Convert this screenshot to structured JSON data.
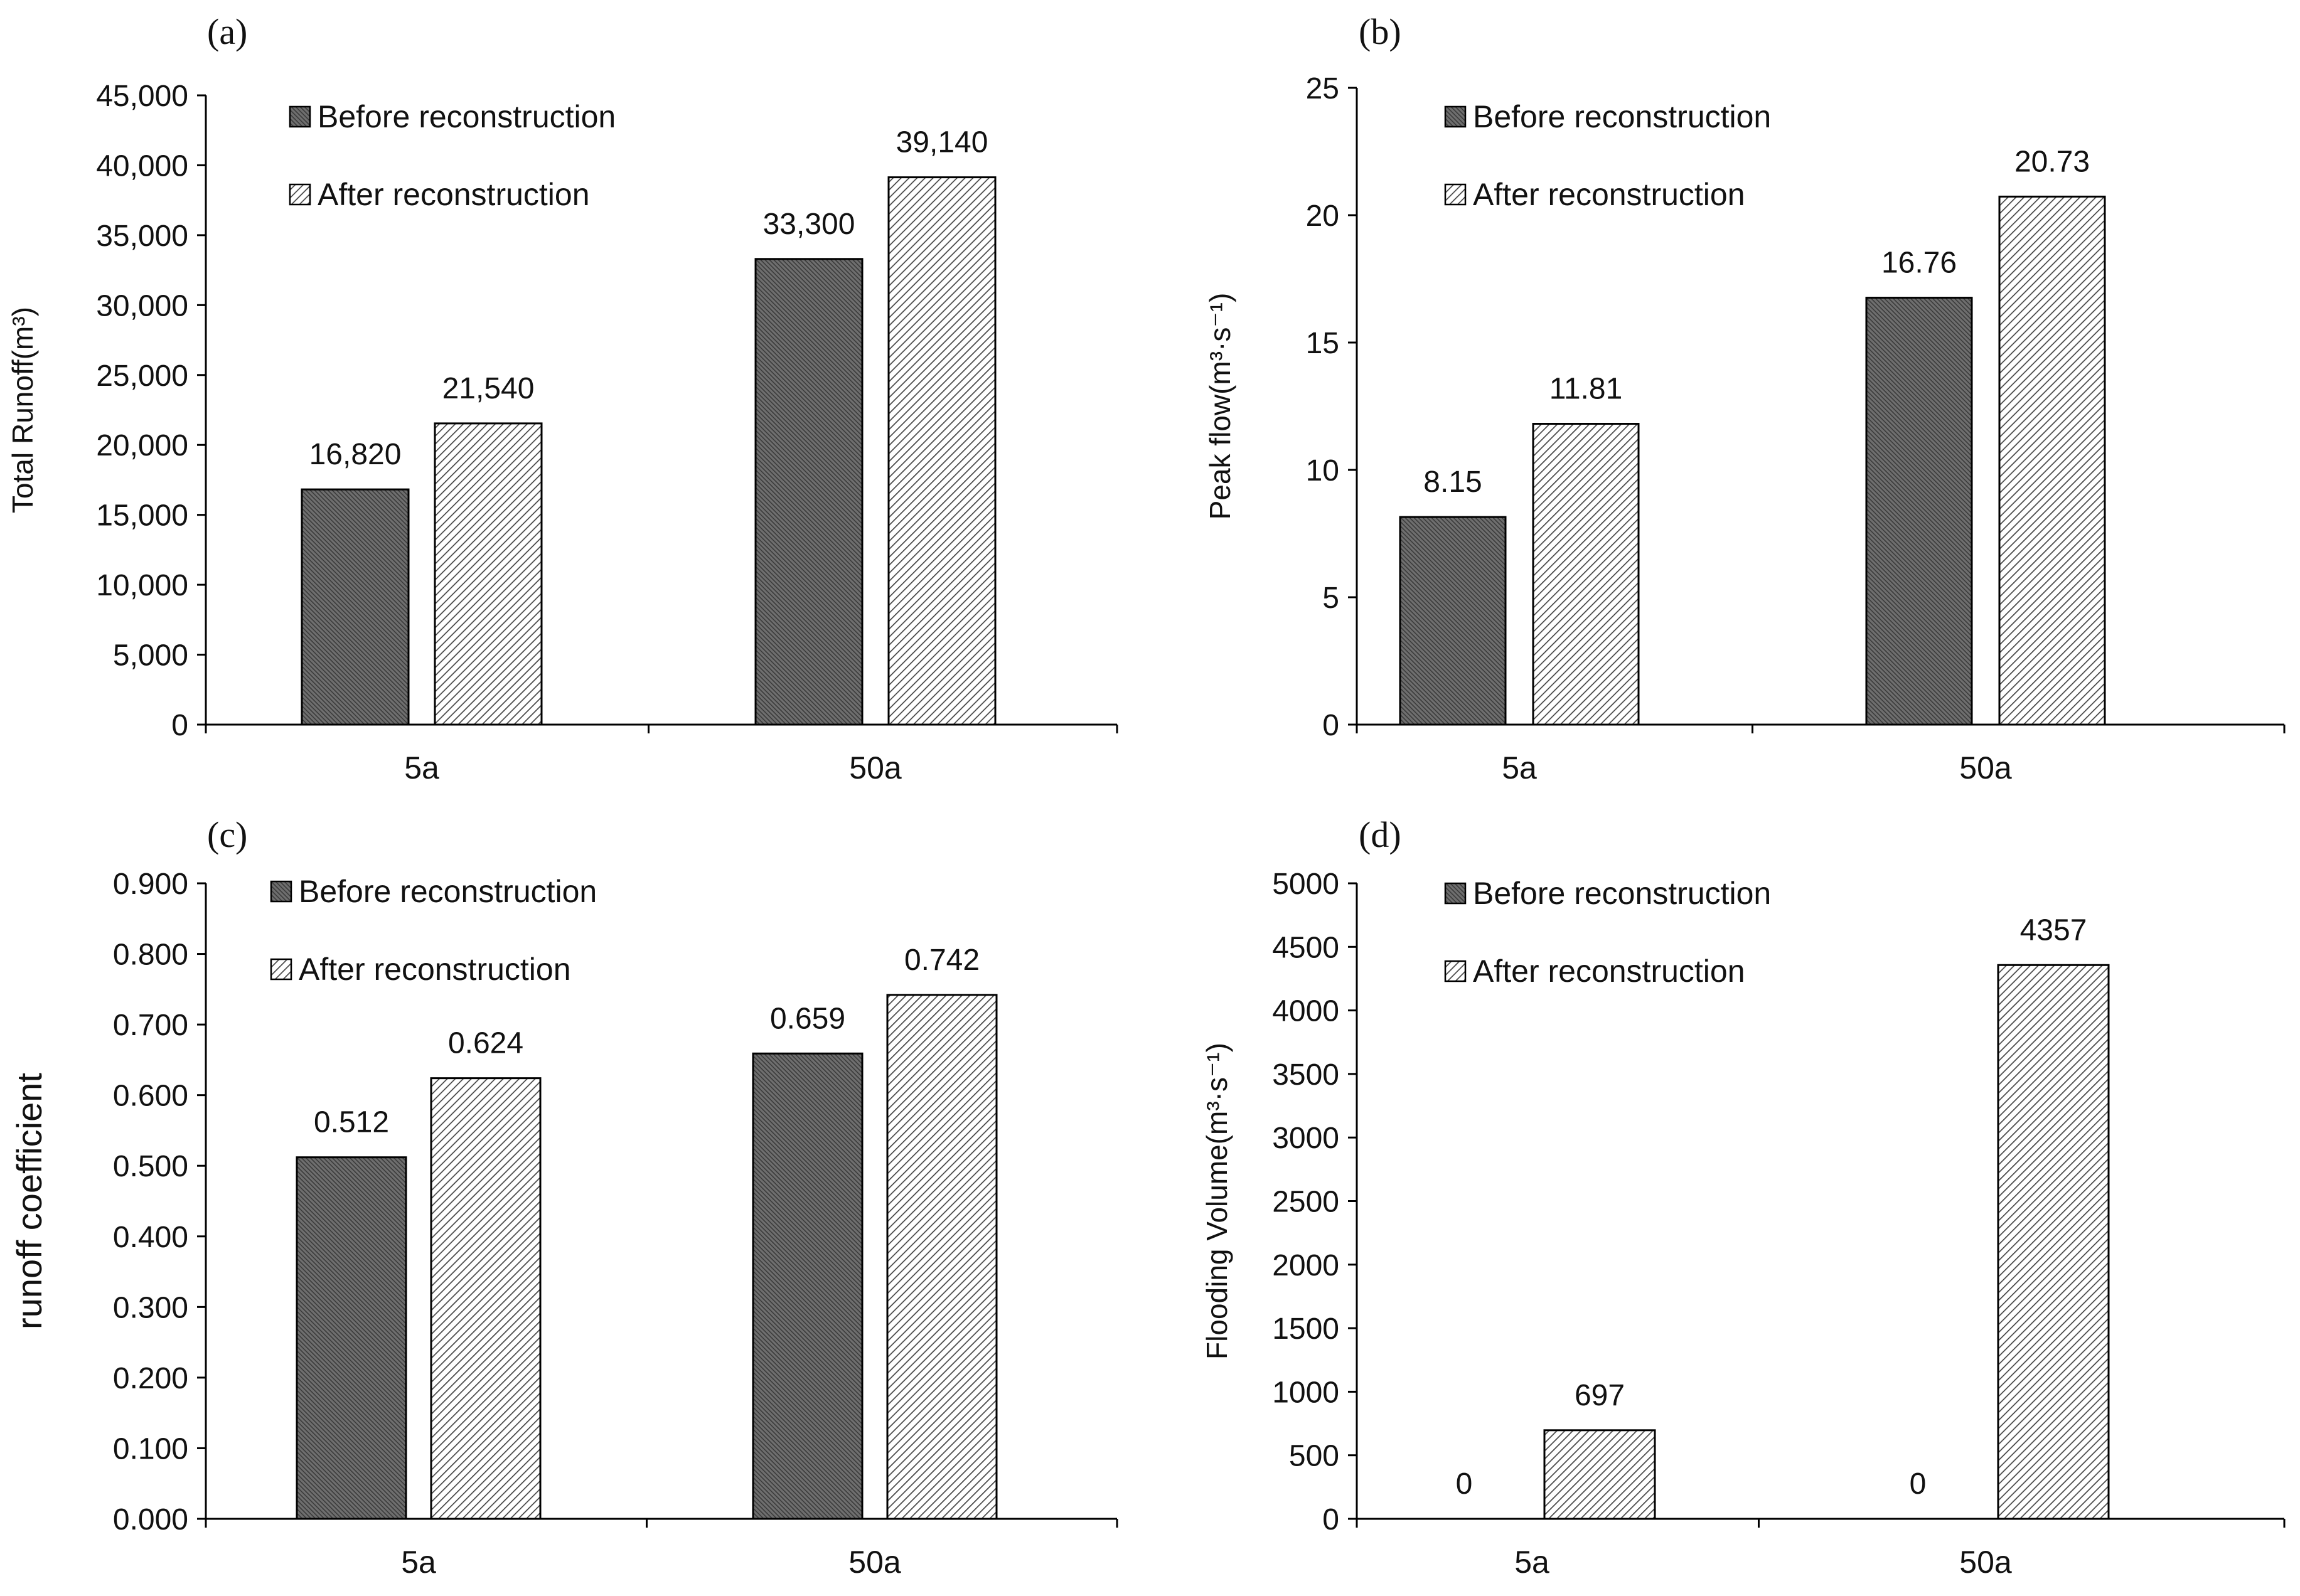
{
  "colors": {
    "before_fill": "#6e6e6e",
    "after_fill": "#ffffff",
    "stroke": "#000000"
  },
  "chart_data": [
    {
      "id": "a",
      "panel_label": "(a)",
      "type": "bar",
      "categories": [
        "5a",
        "50a"
      ],
      "series": [
        {
          "name": "Before reconstruction",
          "values": [
            16820,
            33300
          ],
          "labels": [
            "16,820",
            "33,300"
          ]
        },
        {
          "name": "After reconstruction",
          "values": [
            21540,
            39140
          ],
          "labels": [
            "21,540",
            "39,140"
          ]
        }
      ],
      "ylim": [
        0,
        45000
      ],
      "yticks": [
        "0",
        "5,000",
        "10,000",
        "15,000",
        "20,000",
        "25,000",
        "30,000",
        "35,000",
        "40,000",
        "45,000"
      ],
      "ylabel": "Total Runoff(m³)",
      "xlabel": "",
      "legend": "top-left",
      "grid": false
    },
    {
      "id": "b",
      "panel_label": "(b)",
      "type": "bar",
      "categories": [
        "5a",
        "50a"
      ],
      "series": [
        {
          "name": "Before reconstruction",
          "values": [
            8.15,
            16.76
          ],
          "labels": [
            "8.15",
            "16.76"
          ]
        },
        {
          "name": "After reconstruction",
          "values": [
            11.81,
            20.73
          ],
          "labels": [
            "11.81",
            "20.73"
          ]
        }
      ],
      "ylim": [
        0,
        25
      ],
      "yticks": [
        "0",
        "5",
        "10",
        "15",
        "20",
        "25"
      ],
      "ylabel": "Peak flow(m³·s⁻¹)",
      "xlabel": "",
      "legend": "top-left",
      "grid": false
    },
    {
      "id": "c",
      "panel_label": "(c)",
      "type": "bar",
      "categories": [
        "5a",
        "50a"
      ],
      "series": [
        {
          "name": "Before reconstruction",
          "values": [
            0.512,
            0.659
          ],
          "labels": [
            "0.512",
            "0.659"
          ]
        },
        {
          "name": "After reconstruction",
          "values": [
            0.624,
            0.742
          ],
          "labels": [
            "0.624",
            "0.742"
          ]
        }
      ],
      "ylim": [
        0,
        0.9
      ],
      "yticks": [
        "0.000",
        "0.100",
        "0.200",
        "0.300",
        "0.400",
        "0.500",
        "0.600",
        "0.700",
        "0.800",
        "0.900"
      ],
      "ylabel": "runoff coefficient",
      "xlabel": "",
      "legend": "top-left",
      "grid": false
    },
    {
      "id": "d",
      "panel_label": "(d)",
      "type": "bar",
      "categories": [
        "5a",
        "50a"
      ],
      "series": [
        {
          "name": "Before reconstruction",
          "values": [
            0,
            0
          ],
          "labels": [
            "0",
            "0"
          ]
        },
        {
          "name": "After reconstruction",
          "values": [
            697,
            4357
          ],
          "labels": [
            "697",
            "4357"
          ]
        }
      ],
      "ylim": [
        0,
        5000
      ],
      "yticks": [
        "0",
        "500",
        "1000",
        "1500",
        "2000",
        "2500",
        "3000",
        "3500",
        "4000",
        "4500",
        "5000"
      ],
      "ylabel": "Flooding  Volume(m³·s⁻¹)",
      "xlabel": "",
      "legend": "top-left",
      "grid": false
    }
  ]
}
